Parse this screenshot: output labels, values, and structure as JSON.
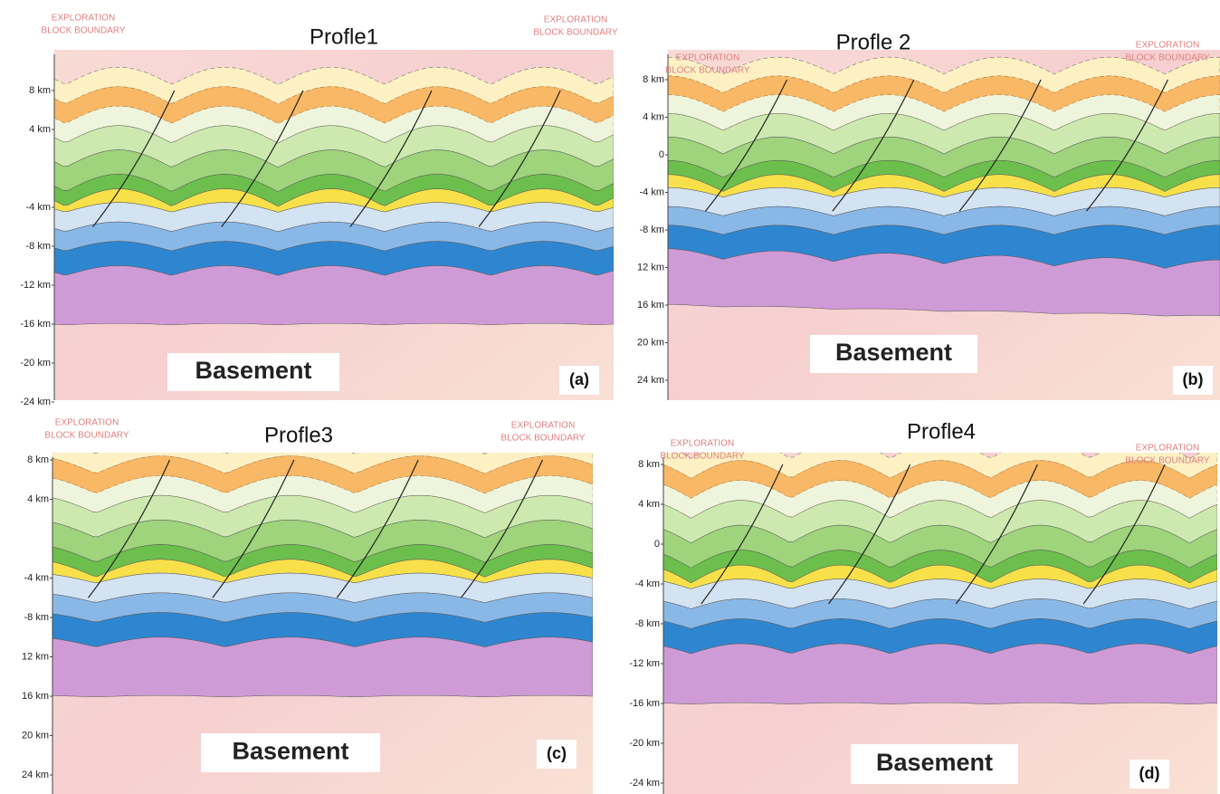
{
  "figure": {
    "panels": [
      {
        "title": "Profle1",
        "letter": "(a)",
        "basement": "Basement",
        "boundary_left": [
          "EXPLORATION",
          "BLOCK BOUNDARY"
        ],
        "boundary_right": [
          "EXPLORATION",
          "BLOCK BOUNDARY"
        ],
        "depth_labels": [
          "8 km",
          "4 km",
          "-4 km",
          "-8 km",
          "-12 km",
          "-16 km",
          "-20 km",
          "-24 km"
        ]
      },
      {
        "title": "Profle 2",
        "letter": "(b)",
        "basement": "Basement",
        "boundary_left": [
          "EXPLORATION",
          "BLOCK BOUNDARY"
        ],
        "boundary_right": [
          "EXPLORATION",
          "BLOCK BOUNDARY"
        ],
        "depth_labels": [
          "8 km",
          "4 km",
          "0",
          "-4 km",
          "-8 km",
          "12 km",
          "16 km",
          "20 km",
          "24 km"
        ]
      },
      {
        "title": "Profle3",
        "letter": "(c)",
        "basement": "Basement",
        "boundary_left": [
          "EXPLORATION",
          "BLOCK BOUNDARY"
        ],
        "boundary_right": [
          "EXPLORATION",
          "BLOCK BOUNDARY"
        ],
        "depth_labels": [
          "8 km",
          "4 km",
          "-4 km",
          "-8 km",
          "12 km",
          "16 km",
          "20 km",
          "24 km"
        ]
      },
      {
        "title": "Profle4",
        "letter": "(d)",
        "basement": "Basement",
        "boundary_left": [
          "EXPLORATION",
          "BLOCK BOUNDARY"
        ],
        "boundary_right": [
          "EXPLORATION",
          "BLOCK BOUNDARY"
        ],
        "depth_labels": [
          "8 km",
          "4 km",
          "0",
          "-4 km",
          "-8 km",
          "-12 km",
          "-16 km",
          "-20 km",
          "-24 km"
        ]
      }
    ]
  }
}
